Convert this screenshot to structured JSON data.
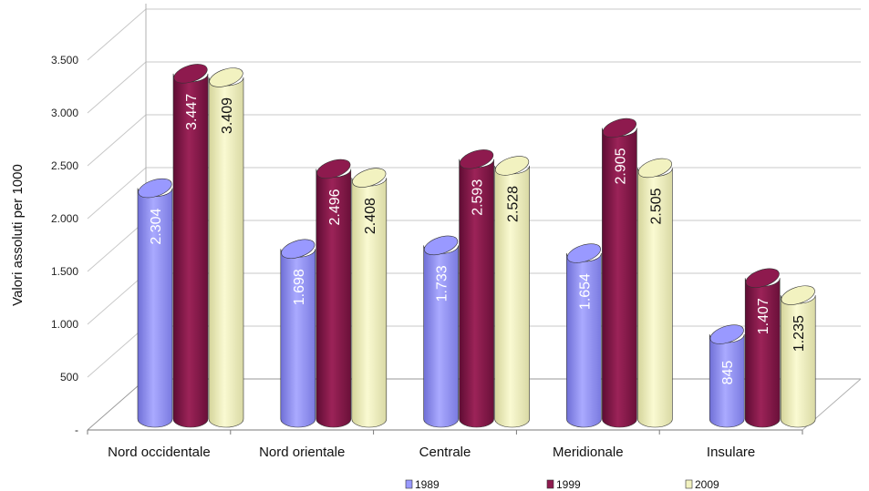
{
  "chart_data": {
    "type": "bar",
    "ylabel": "Valori assoluti per 1000",
    "ylim": [
      0,
      3500
    ],
    "yticks": [
      {
        "v": 0,
        "label": "-"
      },
      {
        "v": 500,
        "label": "500"
      },
      {
        "v": 1000,
        "label": "1.000"
      },
      {
        "v": 1500,
        "label": "1.500"
      },
      {
        "v": 2000,
        "label": "2.000"
      },
      {
        "v": 2500,
        "label": "2.500"
      },
      {
        "v": 3000,
        "label": "3.000"
      },
      {
        "v": 3500,
        "label": "3.500"
      }
    ],
    "categories": [
      "Nord occidentale",
      "Nord orientale",
      "Centrale",
      "Meridionale",
      "Insulare"
    ],
    "series": [
      {
        "name": "1989",
        "color": "#9999ff",
        "label_color": "#ffffff",
        "values": [
          2304,
          1698,
          1733,
          1654,
          845
        ],
        "labels": [
          "2.304",
          "1.698",
          "1.733",
          "1.654",
          "845"
        ]
      },
      {
        "name": "1999",
        "color": "#8e1a4e",
        "label_color": "#ffffff",
        "values": [
          3447,
          2496,
          2593,
          2905,
          1407
        ],
        "labels": [
          "3.447",
          "2.496",
          "2.593",
          "2.905",
          "1.407"
        ]
      },
      {
        "name": "2009",
        "color": "#f2f2c0",
        "label_color": "#111111",
        "values": [
          3409,
          2408,
          2528,
          2505,
          1235
        ],
        "labels": [
          "3.409",
          "2.408",
          "2.528",
          "2.505",
          "1.235"
        ]
      }
    ],
    "grid": true,
    "legend": "bottom",
    "style": "3d-cylinder"
  }
}
